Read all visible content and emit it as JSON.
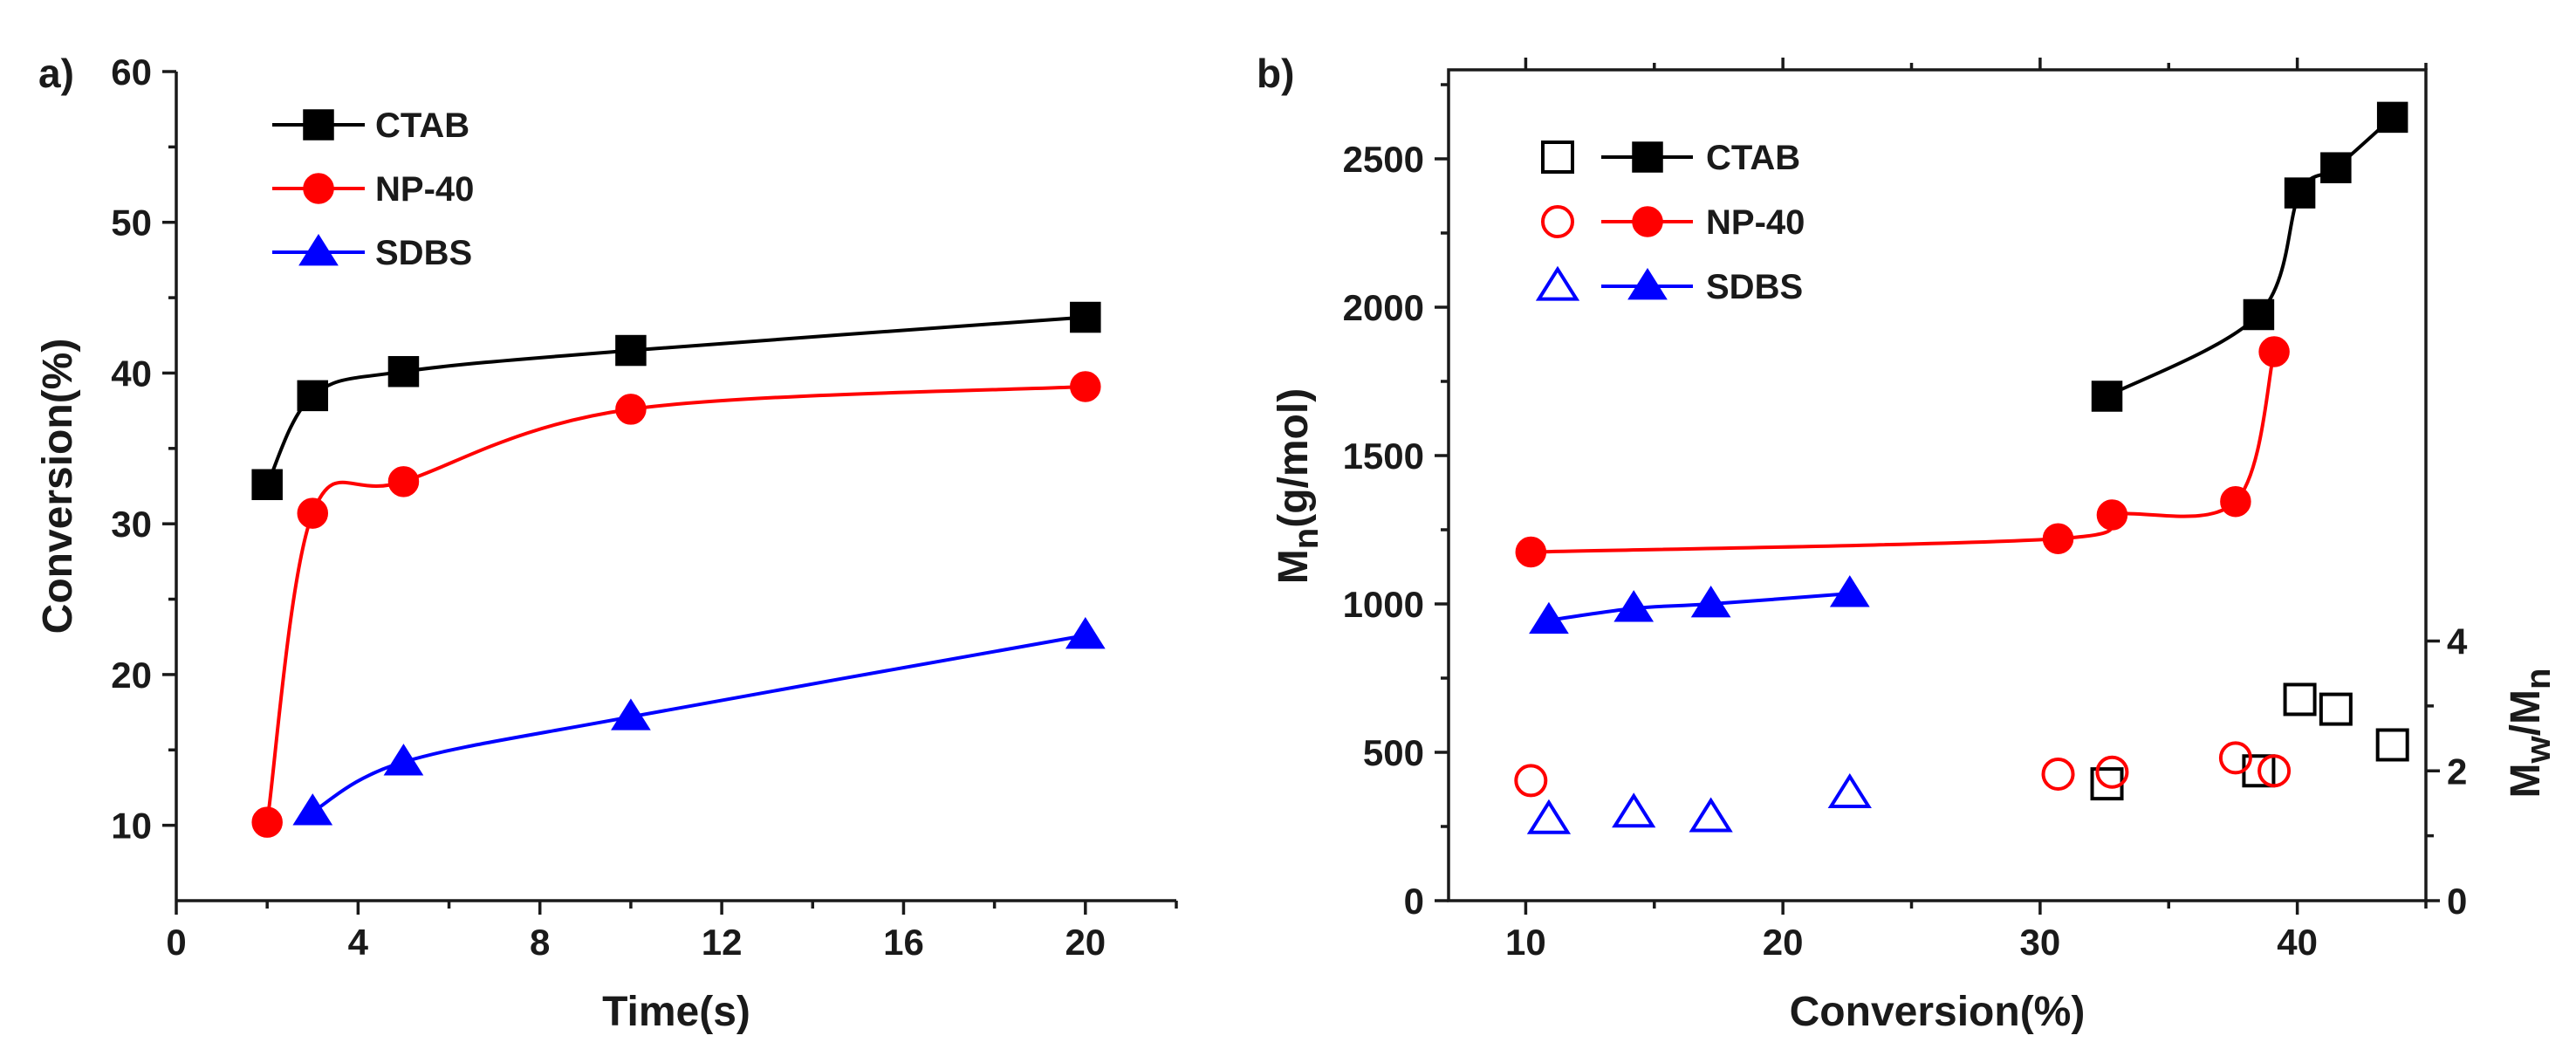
{
  "figure": {
    "colors": {
      "CTAB": "#000000",
      "NP-40": "#ff0000",
      "SDBS": "#0000ff",
      "axis": "#1a1a1a"
    }
  },
  "chart_data": [
    {
      "panel": "a)",
      "type": "line",
      "title": "",
      "xlabel": "Time(s)",
      "ylabel": "Conversion(%)",
      "xlim": [
        0,
        22
      ],
      "ylim": [
        5,
        60
      ],
      "xticks": [
        0,
        4,
        8,
        12,
        16,
        20
      ],
      "yticks": [
        10,
        20,
        30,
        40,
        50,
        60
      ],
      "legend_position": "top-left",
      "series": [
        {
          "name": "CTAB",
          "marker": "square",
          "filled": true,
          "color": "#000000",
          "x": [
            2,
            3,
            5,
            10,
            20
          ],
          "y": [
            32.6,
            38.5,
            40.1,
            41.5,
            43.7
          ]
        },
        {
          "name": "NP-40",
          "marker": "circle",
          "filled": true,
          "color": "#ff0000",
          "x": [
            2,
            3,
            5,
            10,
            20
          ],
          "y": [
            10.2,
            30.7,
            32.8,
            37.6,
            39.1
          ]
        },
        {
          "name": "SDBS",
          "marker": "triangle",
          "filled": true,
          "color": "#0000ff",
          "x": [
            3,
            5,
            10,
            20
          ],
          "y": [
            10.9,
            14.2,
            17.2,
            22.6
          ]
        }
      ]
    },
    {
      "panel": "b)",
      "type": "line",
      "title": "",
      "xlabel": "Conversion(%)",
      "ylabel": "Mn(g/mol)",
      "ylabel_right": "Mw/Mn",
      "xlim": [
        7,
        45
      ],
      "ylim": [
        0,
        2800
      ],
      "ylim_right": [
        0,
        12.8
      ],
      "xticks": [
        10,
        20,
        30,
        40
      ],
      "yticks": [
        0,
        500,
        1000,
        1500,
        2000,
        2500
      ],
      "yticks_right": [
        0,
        2,
        4
      ],
      "legend_position": "top-left",
      "series": [
        {
          "name": "CTAB",
          "axis": "left",
          "marker": "square",
          "filled": true,
          "color": "#000000",
          "x": [
            32.6,
            38.5,
            40.1,
            41.5,
            43.7
          ],
          "y": [
            1700,
            1975,
            2385,
            2470,
            2640
          ]
        },
        {
          "name": "NP-40",
          "axis": "left",
          "marker": "circle",
          "filled": true,
          "color": "#ff0000",
          "x": [
            10.2,
            30.7,
            32.8,
            37.6,
            39.1
          ],
          "y": [
            1175,
            1220,
            1300,
            1345,
            1850
          ]
        },
        {
          "name": "SDBS",
          "axis": "left",
          "marker": "triangle",
          "filled": true,
          "color": "#0000ff",
          "x": [
            10.9,
            14.2,
            17.2,
            22.6
          ],
          "y": [
            945,
            985,
            1000,
            1035
          ]
        },
        {
          "name": "CTAB",
          "axis": "right",
          "marker": "square",
          "filled": false,
          "color": "#000000",
          "x": [
            32.6,
            38.5,
            40.1,
            41.5,
            43.7
          ],
          "y": [
            1.8,
            2.0,
            3.1,
            2.95,
            2.4
          ]
        },
        {
          "name": "NP-40",
          "axis": "right",
          "marker": "circle",
          "filled": false,
          "color": "#ff0000",
          "x": [
            10.2,
            30.7,
            32.8,
            37.6,
            39.1
          ],
          "y": [
            1.85,
            1.95,
            1.98,
            2.2,
            2.0
          ]
        },
        {
          "name": "SDBS",
          "axis": "right",
          "marker": "triangle",
          "filled": false,
          "color": "#0000ff",
          "x": [
            10.9,
            14.2,
            17.2,
            22.6
          ],
          "y": [
            1.25,
            1.35,
            1.28,
            1.65
          ]
        }
      ]
    }
  ]
}
